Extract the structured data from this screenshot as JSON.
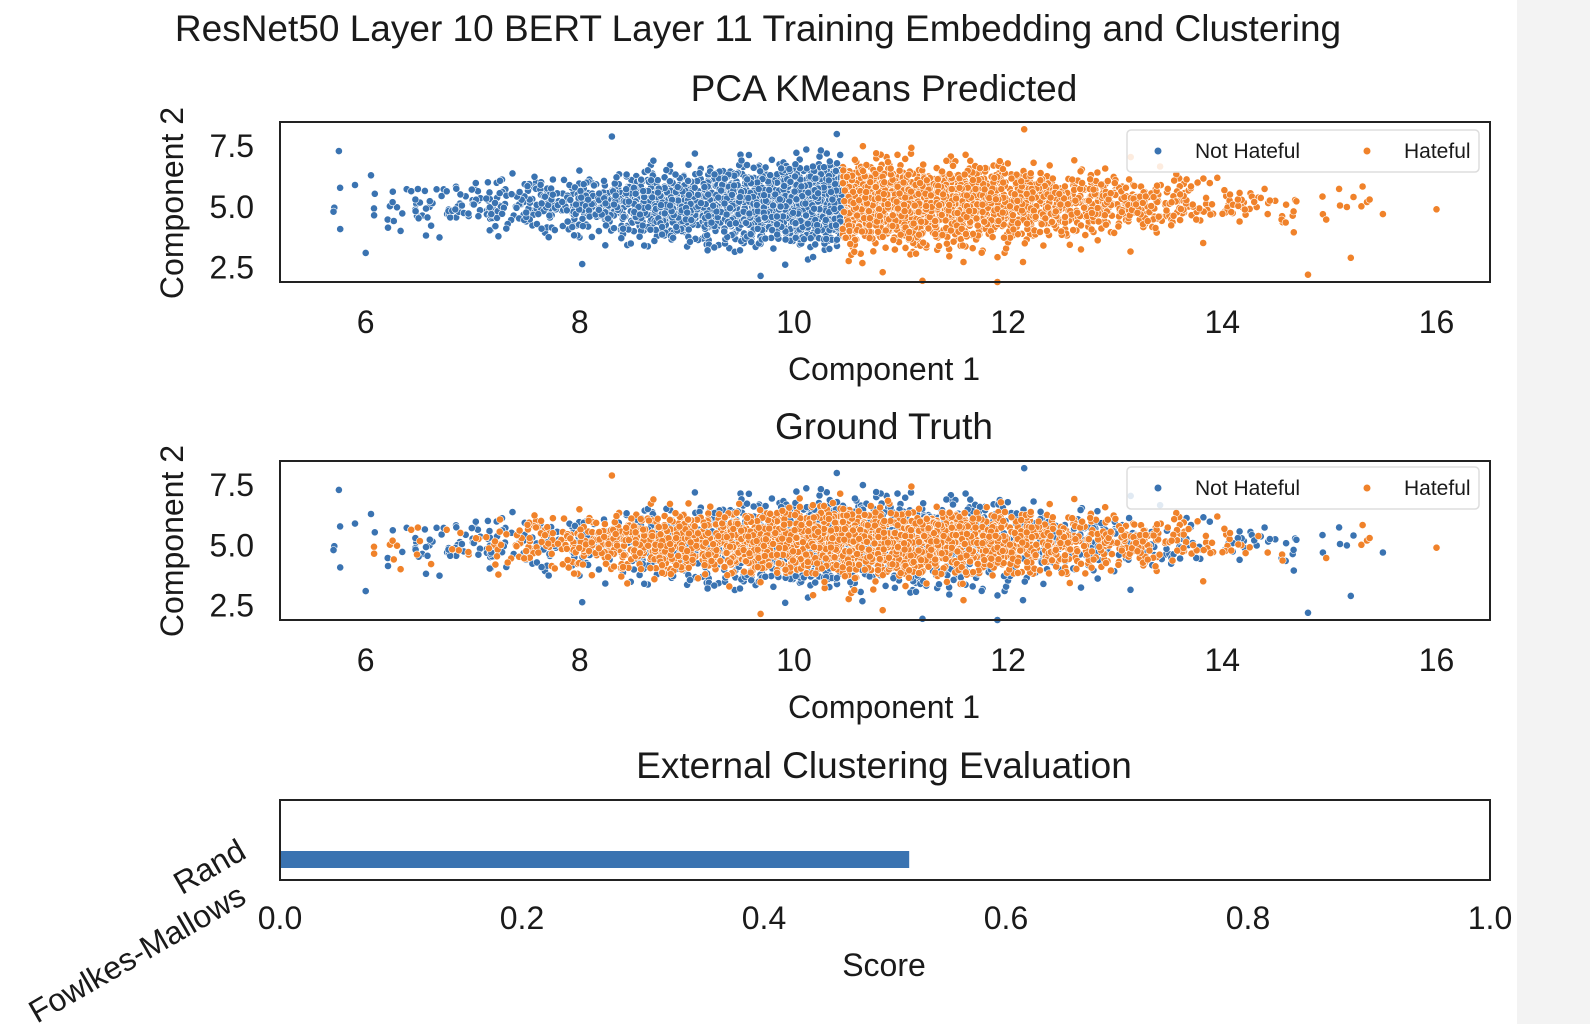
{
  "figure": {
    "suptitle": "ResNet50 Layer 10 BERT Layer 11 Training Embedding and Clustering"
  },
  "colors": {
    "not_hateful": "#3a73b1",
    "hateful": "#f0822a",
    "axes": "#222222",
    "background": "#ffffff"
  },
  "chart_data": [
    {
      "type": "scatter",
      "title": "PCA KMeans Predicted",
      "xlabel": "Component 1",
      "ylabel": "Component 2",
      "xlim": [
        5.2,
        16.5
      ],
      "ylim": [
        1.9,
        8.5
      ],
      "xticks": [
        "6",
        "8",
        "10",
        "12",
        "14",
        "16"
      ],
      "yticks": [
        "2.5",
        "5.0",
        "7.5"
      ],
      "legend": {
        "placement": "upper-right",
        "entries": [
          "Not Hateful",
          "Hateful"
        ]
      },
      "grid": false,
      "series": [
        {
          "name": "Not Hateful",
          "x_range": [
            5.7,
            10.45
          ],
          "description_points": "x < 10.45"
        },
        {
          "name": "Hateful",
          "x_range": [
            10.45,
            16.0
          ],
          "description_points": "x >= 10.45"
        }
      ],
      "distribution": {
        "x_mean": 10.5,
        "x_sd": 1.6,
        "y_mean": 5.1,
        "y_sd": 0.85,
        "n": 4200,
        "boundary_x": 10.45
      },
      "outliers": [
        [
          5.75,
          7.3
        ],
        [
          5.7,
          4.8
        ],
        [
          6.0,
          3.1
        ],
        [
          5.9,
          5.9
        ],
        [
          6.05,
          6.3
        ],
        [
          14.8,
          2.2
        ],
        [
          15.2,
          2.9
        ],
        [
          16.0,
          4.9
        ],
        [
          15.5,
          4.7
        ],
        [
          12.15,
          8.2
        ],
        [
          11.9,
          1.9
        ],
        [
          11.2,
          1.95
        ],
        [
          10.4,
          8.0
        ],
        [
          8.3,
          7.9
        ]
      ]
    },
    {
      "type": "scatter",
      "title": "Ground Truth",
      "xlabel": "Component 1",
      "ylabel": "Component 2",
      "xlim": [
        5.2,
        16.5
      ],
      "ylim": [
        1.9,
        8.5
      ],
      "xticks": [
        "6",
        "8",
        "10",
        "12",
        "14",
        "16"
      ],
      "yticks": [
        "2.5",
        "5.0",
        "7.5"
      ],
      "legend": {
        "placement": "upper-right",
        "entries": [
          "Not Hateful",
          "Hateful"
        ]
      },
      "grid": false,
      "series": [
        {
          "name": "Not Hateful",
          "description_points": "spread across full range"
        },
        {
          "name": "Hateful",
          "description_points": "concentrated in central band"
        }
      ],
      "distribution": {
        "x_mean": 10.5,
        "x_sd": 1.6,
        "y_mean": 5.1,
        "y_sd": 0.85,
        "n": 4200
      }
    },
    {
      "type": "bar",
      "orientation": "horizontal",
      "title": "External Clustering Evaluation",
      "xlabel": "Score",
      "ylabel": "",
      "categories": [
        "Rand",
        "Fowlkes-Mallows"
      ],
      "values": [
        0.52,
        0.0
      ],
      "xlim": [
        0.0,
        1.0
      ],
      "xticks": [
        "0.0",
        "0.2",
        "0.4",
        "0.6",
        "0.8",
        "1.0"
      ]
    }
  ]
}
